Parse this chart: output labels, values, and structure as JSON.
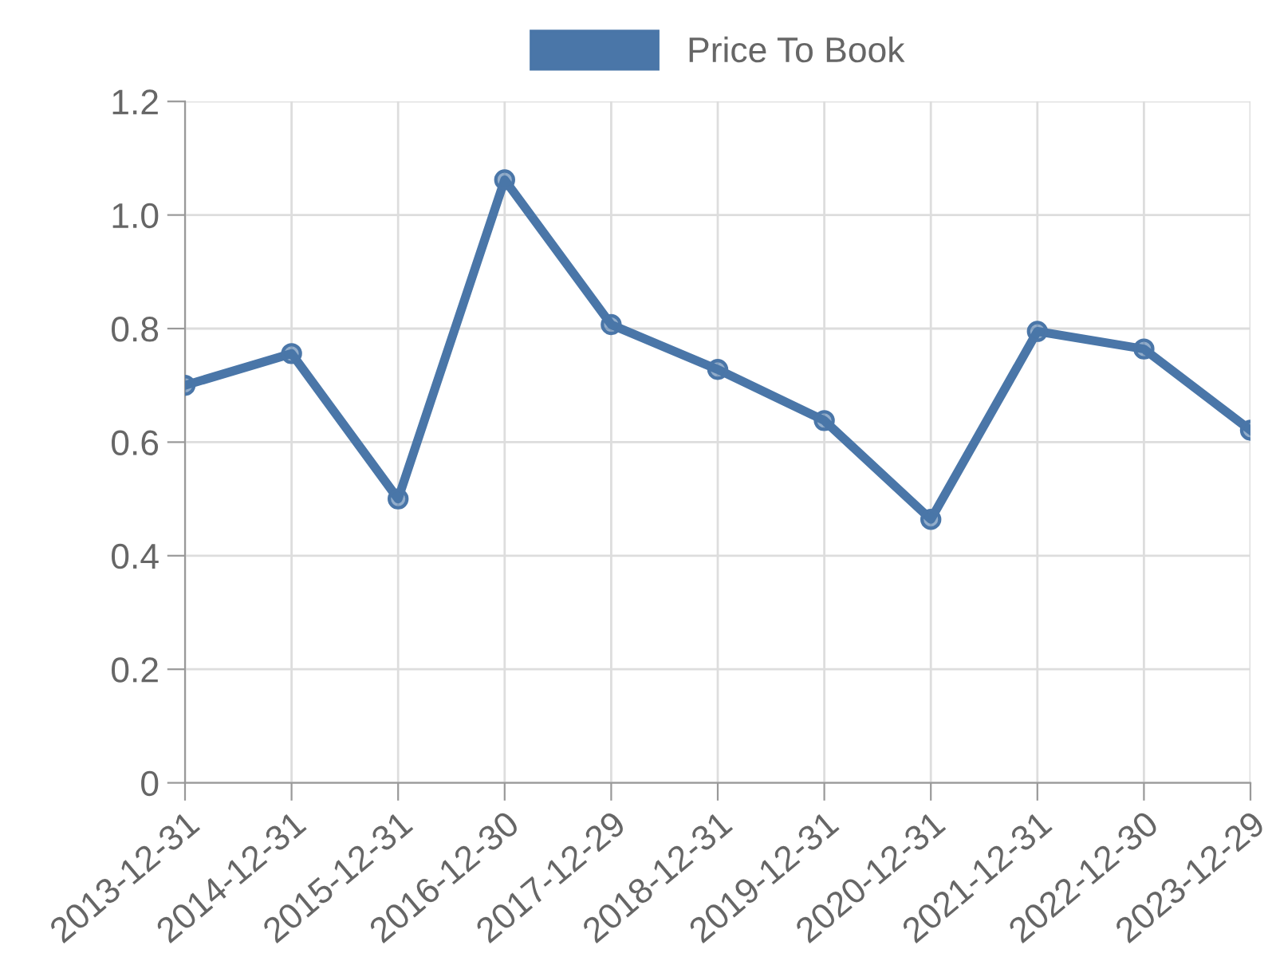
{
  "chart_data": {
    "type": "line",
    "categories": [
      "2013-12-31",
      "2014-12-31",
      "2015-12-31",
      "2016-12-30",
      "2017-12-29",
      "2018-12-31",
      "2019-12-31",
      "2020-12-31",
      "2021-12-31",
      "2022-12-30",
      "2023-12-29"
    ],
    "series": [
      {
        "name": "Price To Book",
        "color": "#4a76a8",
        "values": [
          0.7,
          0.756,
          0.5,
          1.062,
          0.807,
          0.728,
          0.638,
          0.464,
          0.795,
          0.764,
          0.621
        ]
      }
    ],
    "ylim": [
      0,
      1.2
    ],
    "yticks": [
      0,
      {
        "value": 0.2,
        "label": "0.2"
      },
      {
        "value": 0.4,
        "label": "0.4"
      },
      {
        "value": 0.6,
        "label": "0.6"
      },
      {
        "value": 0.8,
        "label": "0.8"
      },
      {
        "value": 1.0,
        "label": "1.0"
      },
      {
        "value": 1.2,
        "label": "1.2"
      }
    ],
    "grid": true,
    "legend": "top",
    "marker": "circle",
    "line_style": "solid"
  }
}
